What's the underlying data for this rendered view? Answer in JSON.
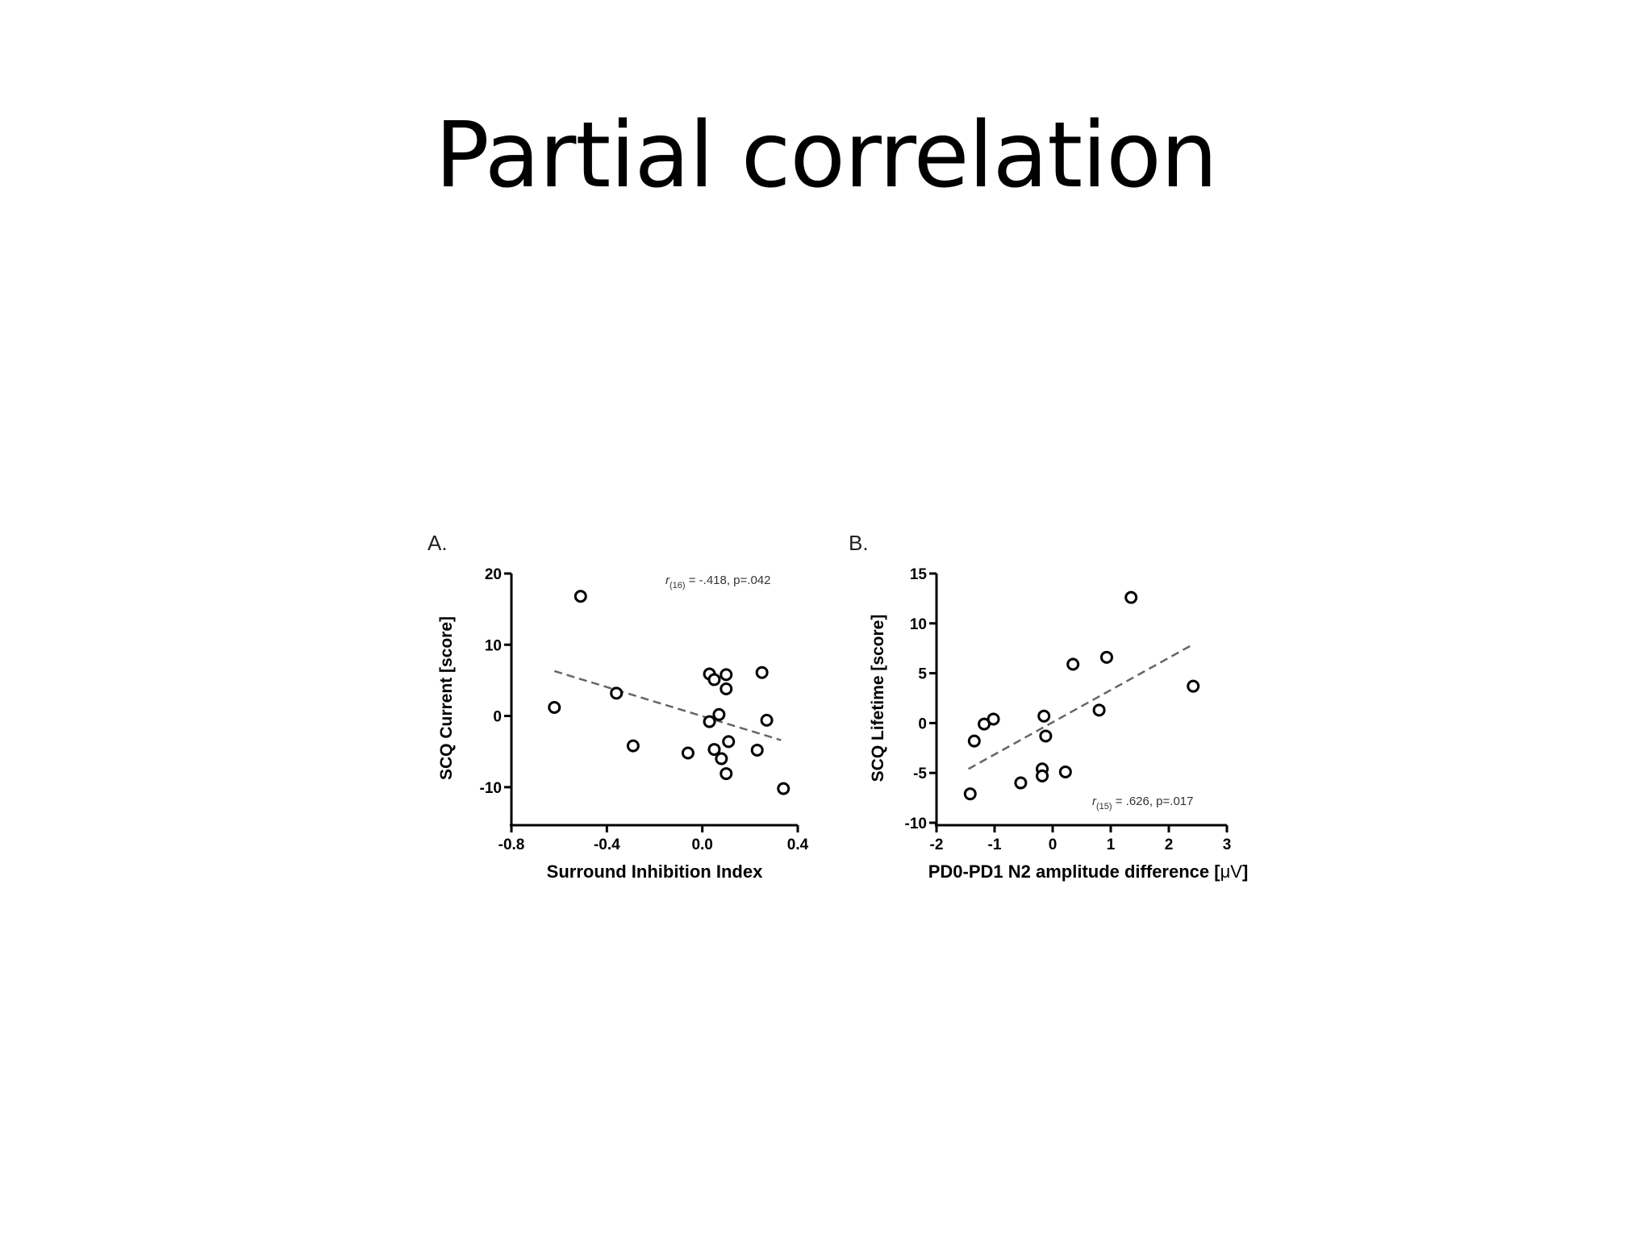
{
  "slide": {
    "title": "Partial correlation"
  },
  "chart_data": [
    {
      "type": "scatter",
      "panel_label": "A.",
      "xlabel": "Surround Inhibition Index",
      "ylabel": "SCQ Current [score]",
      "xlim": [
        -0.8,
        0.4
      ],
      "ylim": [
        -15,
        20
      ],
      "xticks": [
        "-0.8",
        "-0.4",
        "0.0",
        "0.4"
      ],
      "yticks": [
        "20",
        "10",
        "0",
        "-10"
      ],
      "xtick_values": [
        -0.8,
        -0.4,
        0.0,
        0.4
      ],
      "ytick_values": [
        20,
        10,
        0,
        -10
      ],
      "annotation": {
        "prefix": "r",
        "subscript": "(16)",
        "text": " = -.418, p=.042",
        "position": "top-right"
      },
      "trend_line": {
        "style": "dashed",
        "x": [
          -0.62,
          0.33
        ],
        "y": [
          6.3,
          -3.4
        ]
      },
      "points": [
        {
          "x": -0.51,
          "y": 16.8
        },
        {
          "x": -0.62,
          "y": 1.2
        },
        {
          "x": -0.36,
          "y": 3.2
        },
        {
          "x": -0.29,
          "y": -4.2
        },
        {
          "x": -0.06,
          "y": -5.2
        },
        {
          "x": 0.03,
          "y": 5.9
        },
        {
          "x": 0.05,
          "y": 5.1
        },
        {
          "x": 0.1,
          "y": 5.8
        },
        {
          "x": 0.1,
          "y": 3.8
        },
        {
          "x": 0.07,
          "y": 0.2
        },
        {
          "x": 0.03,
          "y": -0.8
        },
        {
          "x": 0.11,
          "y": -3.6
        },
        {
          "x": 0.05,
          "y": -4.7
        },
        {
          "x": 0.08,
          "y": -6.0
        },
        {
          "x": 0.1,
          "y": -8.1
        },
        {
          "x": 0.23,
          "y": -4.8
        },
        {
          "x": 0.25,
          "y": 6.1
        },
        {
          "x": 0.27,
          "y": -0.6
        },
        {
          "x": 0.34,
          "y": -10.2
        }
      ]
    },
    {
      "type": "scatter",
      "panel_label": "B.",
      "xlabel_prefix": "PD0-PD1 N2 amplitude difference [",
      "xlabel_unit": "μV",
      "xlabel_suffix": "]",
      "ylabel": "SCQ Lifetime [score]",
      "xlim": [
        -2,
        3
      ],
      "ylim": [
        -10,
        15
      ],
      "xticks": [
        "-2",
        "-1",
        "0",
        "1",
        "2",
        "3"
      ],
      "yticks": [
        "15",
        "10",
        "5",
        "0",
        "-5",
        "-10"
      ],
      "xtick_values": [
        -2,
        -1,
        0,
        1,
        2,
        3
      ],
      "ytick_values": [
        15,
        10,
        5,
        0,
        -5,
        -10
      ],
      "annotation": {
        "prefix": "r",
        "subscript": "(15)",
        "text": " = .626, p=.017",
        "position": "bottom-right"
      },
      "trend_line": {
        "style": "dashed",
        "x": [
          -1.45,
          2.42
        ],
        "y": [
          -4.6,
          7.9
        ]
      },
      "points": [
        {
          "x": -1.42,
          "y": -7.1
        },
        {
          "x": -1.35,
          "y": -1.8
        },
        {
          "x": -1.18,
          "y": -0.1
        },
        {
          "x": -1.02,
          "y": 0.4
        },
        {
          "x": -0.55,
          "y": -6.0
        },
        {
          "x": -0.18,
          "y": -4.6
        },
        {
          "x": -0.18,
          "y": -5.3
        },
        {
          "x": -0.15,
          "y": 0.7
        },
        {
          "x": -0.12,
          "y": -1.3
        },
        {
          "x": 0.22,
          "y": -4.9
        },
        {
          "x": 0.35,
          "y": 5.9
        },
        {
          "x": 0.8,
          "y": 1.3
        },
        {
          "x": 0.93,
          "y": 6.6
        },
        {
          "x": 1.35,
          "y": 12.6
        },
        {
          "x": 2.42,
          "y": 3.7
        }
      ]
    }
  ]
}
